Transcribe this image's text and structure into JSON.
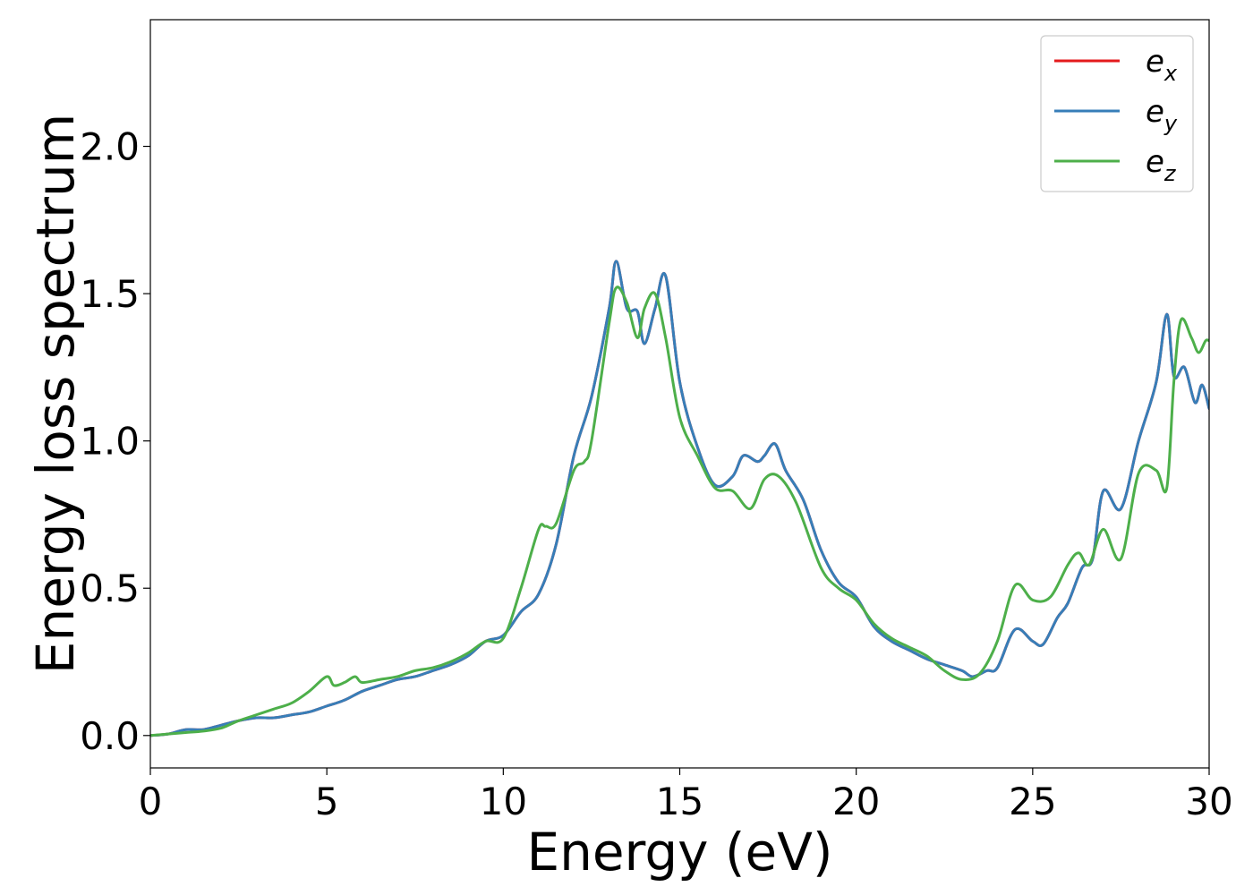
{
  "chart_data": {
    "type": "line",
    "xlabel": "Energy (eV)",
    "ylabel": "Energy loss spectrum",
    "xlim": [
      0,
      30
    ],
    "ylim": [
      -0.11,
      2.43
    ],
    "xticks": [
      0,
      5,
      10,
      15,
      20,
      25,
      30
    ],
    "yticks": [
      0.0,
      0.5,
      1.0,
      1.5,
      2.0
    ],
    "xtick_labels": [
      "0",
      "5",
      "10",
      "15",
      "20",
      "25",
      "30"
    ],
    "ytick_labels": [
      "0.0",
      "0.5",
      "1.0",
      "1.5",
      "2.0"
    ],
    "grid": false,
    "legend_position": "top-right",
    "series": [
      {
        "name": "e_x",
        "label_base": "e",
        "label_sub": "x",
        "color": "#e41a1c",
        "x": [
          0,
          0.5,
          1,
          1.5,
          2,
          2.5,
          3,
          3.5,
          4,
          4.5,
          5,
          5.5,
          6,
          6.5,
          7,
          7.5,
          8,
          8.5,
          9,
          9.5,
          10,
          10.5,
          11,
          11.5,
          12,
          12.5,
          13,
          13.2,
          13.5,
          13.8,
          14,
          14.3,
          14.6,
          15,
          15.5,
          16,
          16.5,
          16.8,
          17.2,
          17.4,
          17.7,
          18,
          18.5,
          19,
          19.5,
          20,
          20.5,
          21,
          21.5,
          22,
          22.5,
          23,
          23.3,
          23.7,
          24,
          24.5,
          25,
          25.3,
          25.7,
          26,
          26.4,
          26.7,
          27,
          27.5,
          28,
          28.5,
          28.8,
          29,
          29.3,
          29.6,
          29.8,
          30
        ],
        "y": [
          0.0,
          0.005,
          0.02,
          0.02,
          0.035,
          0.05,
          0.06,
          0.06,
          0.07,
          0.08,
          0.1,
          0.12,
          0.15,
          0.17,
          0.19,
          0.2,
          0.22,
          0.24,
          0.27,
          0.32,
          0.34,
          0.42,
          0.48,
          0.65,
          0.95,
          1.15,
          1.45,
          1.61,
          1.45,
          1.44,
          1.33,
          1.45,
          1.56,
          1.2,
          0.98,
          0.85,
          0.88,
          0.95,
          0.93,
          0.95,
          0.99,
          0.9,
          0.8,
          0.63,
          0.52,
          0.47,
          0.37,
          0.32,
          0.29,
          0.26,
          0.24,
          0.22,
          0.2,
          0.22,
          0.23,
          0.36,
          0.32,
          0.31,
          0.4,
          0.45,
          0.57,
          0.6,
          0.83,
          0.77,
          1.0,
          1.2,
          1.43,
          1.22,
          1.25,
          1.13,
          1.19,
          1.11
        ]
      },
      {
        "name": "e_y",
        "label_base": "e",
        "label_sub": "y",
        "color": "#377eb8",
        "x": [
          0,
          0.5,
          1,
          1.5,
          2,
          2.5,
          3,
          3.5,
          4,
          4.5,
          5,
          5.5,
          6,
          6.5,
          7,
          7.5,
          8,
          8.5,
          9,
          9.5,
          10,
          10.5,
          11,
          11.5,
          12,
          12.5,
          13,
          13.2,
          13.5,
          13.8,
          14,
          14.3,
          14.6,
          15,
          15.5,
          16,
          16.5,
          16.8,
          17.2,
          17.4,
          17.7,
          18,
          18.5,
          19,
          19.5,
          20,
          20.5,
          21,
          21.5,
          22,
          22.5,
          23,
          23.3,
          23.7,
          24,
          24.5,
          25,
          25.3,
          25.7,
          26,
          26.4,
          26.7,
          27,
          27.5,
          28,
          28.5,
          28.8,
          29,
          29.3,
          29.6,
          29.8,
          30
        ],
        "y": [
          0.0,
          0.005,
          0.02,
          0.02,
          0.035,
          0.05,
          0.06,
          0.06,
          0.07,
          0.08,
          0.1,
          0.12,
          0.15,
          0.17,
          0.19,
          0.2,
          0.22,
          0.24,
          0.27,
          0.32,
          0.34,
          0.42,
          0.48,
          0.65,
          0.95,
          1.15,
          1.45,
          1.61,
          1.45,
          1.44,
          1.33,
          1.45,
          1.56,
          1.2,
          0.98,
          0.85,
          0.88,
          0.95,
          0.93,
          0.95,
          0.99,
          0.9,
          0.8,
          0.63,
          0.52,
          0.47,
          0.37,
          0.32,
          0.29,
          0.26,
          0.24,
          0.22,
          0.2,
          0.22,
          0.23,
          0.36,
          0.32,
          0.31,
          0.4,
          0.45,
          0.57,
          0.6,
          0.83,
          0.77,
          1.0,
          1.2,
          1.43,
          1.22,
          1.25,
          1.13,
          1.19,
          1.11
        ]
      },
      {
        "name": "e_z",
        "label_base": "e",
        "label_sub": "z",
        "color": "#4daf4a",
        "x": [
          0,
          0.5,
          1,
          1.5,
          2,
          2.5,
          3,
          3.5,
          4,
          4.5,
          5,
          5.2,
          5.5,
          5.8,
          6,
          6.5,
          7,
          7.5,
          8,
          8.5,
          9,
          9.5,
          10,
          10.5,
          11,
          11.2,
          11.5,
          12,
          12.3,
          12.5,
          13,
          13.2,
          13.5,
          13.8,
          14,
          14.3,
          14.6,
          15,
          15.5,
          16,
          16.5,
          17,
          17.4,
          17.8,
          18.3,
          19,
          19.5,
          20,
          20.5,
          21,
          21.5,
          22,
          22.5,
          23,
          23.5,
          24,
          24.5,
          25,
          25.5,
          26,
          26.3,
          26.6,
          27,
          27.5,
          28,
          28.5,
          28.8,
          29,
          29.2,
          29.5,
          29.7,
          29.9,
          30
        ],
        "y": [
          0.0,
          0.005,
          0.01,
          0.015,
          0.025,
          0.05,
          0.07,
          0.09,
          0.11,
          0.15,
          0.2,
          0.17,
          0.18,
          0.2,
          0.18,
          0.19,
          0.2,
          0.22,
          0.23,
          0.25,
          0.28,
          0.32,
          0.33,
          0.5,
          0.7,
          0.71,
          0.72,
          0.9,
          0.93,
          1.0,
          1.4,
          1.52,
          1.47,
          1.35,
          1.45,
          1.5,
          1.35,
          1.08,
          0.95,
          0.84,
          0.83,
          0.77,
          0.87,
          0.88,
          0.79,
          0.57,
          0.5,
          0.46,
          0.38,
          0.33,
          0.3,
          0.27,
          0.22,
          0.19,
          0.21,
          0.32,
          0.51,
          0.46,
          0.47,
          0.58,
          0.62,
          0.58,
          0.7,
          0.6,
          0.89,
          0.9,
          0.84,
          1.2,
          1.41,
          1.35,
          1.3,
          1.34,
          1.34
        ]
      }
    ]
  }
}
